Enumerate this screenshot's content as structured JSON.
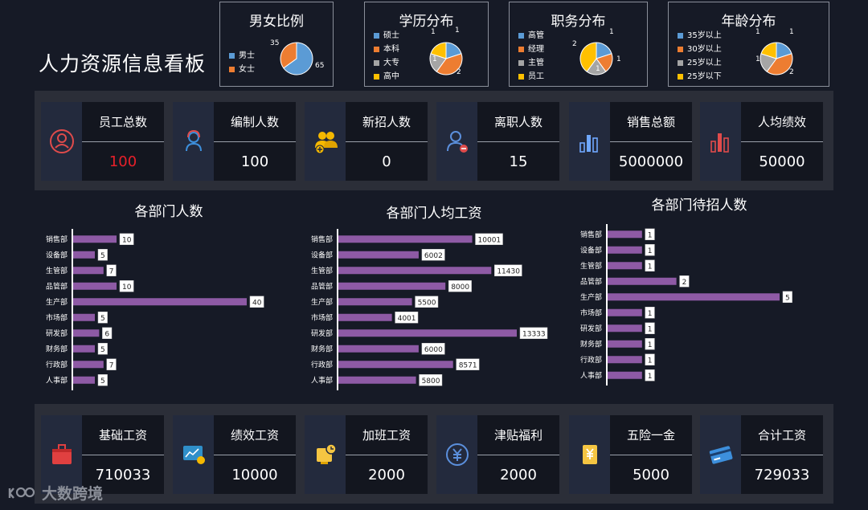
{
  "title": "人力资源信息看板",
  "colors": {
    "blue": "#5b9bd5",
    "orange": "#ed7d31",
    "gray": "#a5a5a5",
    "yellow": "#ffc000",
    "bar": "#8e5aa5",
    "red_value": "#e8202a"
  },
  "pies": [
    {
      "title": "男女比例",
      "legend": [
        {
          "label": "男士",
          "color": "#5b9bd5"
        },
        {
          "label": "女士",
          "color": "#ed7d31"
        }
      ],
      "values": [
        65,
        35
      ],
      "labels": [
        "65",
        "35"
      ]
    },
    {
      "title": "学历分布",
      "legend": [
        {
          "label": "硕士",
          "color": "#5b9bd5"
        },
        {
          "label": "本科",
          "color": "#ed7d31"
        },
        {
          "label": "大专",
          "color": "#a5a5a5"
        },
        {
          "label": "高中",
          "color": "#ffc000"
        }
      ],
      "values": [
        1,
        2,
        1,
        1
      ],
      "labels": [
        "1",
        "2",
        "1",
        "1"
      ]
    },
    {
      "title": "职务分布",
      "legend": [
        {
          "label": "高管",
          "color": "#5b9bd5"
        },
        {
          "label": "经理",
          "color": "#ed7d31"
        },
        {
          "label": "主管",
          "color": "#a5a5a5"
        },
        {
          "label": "员工",
          "color": "#ffc000"
        }
      ],
      "values": [
        1,
        1,
        1,
        2
      ],
      "labels": [
        "1",
        "1",
        "1",
        "2"
      ]
    },
    {
      "title": "年龄分布",
      "legend": [
        {
          "label": "35岁以上",
          "color": "#5b9bd5"
        },
        {
          "label": "30岁以上",
          "color": "#ed7d31"
        },
        {
          "label": "25岁以上",
          "color": "#a5a5a5"
        },
        {
          "label": "25岁以下",
          "color": "#ffc000"
        }
      ],
      "values": [
        1,
        2,
        1,
        1
      ],
      "labels": [
        "1",
        "2",
        "1",
        "1"
      ]
    }
  ],
  "kpis": [
    {
      "label": "员工总数",
      "value": "100",
      "icon": "user-circle-icon",
      "value_color": "#e8202a"
    },
    {
      "label": "编制人数",
      "value": "100",
      "icon": "user-headset-icon"
    },
    {
      "label": "新招人数",
      "value": "0",
      "icon": "user-group-add-icon"
    },
    {
      "label": "离职人数",
      "value": "15",
      "icon": "user-remove-icon"
    },
    {
      "label": "销售总额",
      "value": "5000000",
      "icon": "bar-chart-blue-icon"
    },
    {
      "label": "人均绩效",
      "value": "50000",
      "icon": "bar-chart-red-icon"
    }
  ],
  "salary": [
    {
      "label": "基础工资",
      "value": "710033",
      "icon": "briefcase-icon"
    },
    {
      "label": "绩效工资",
      "value": "10000",
      "icon": "chart-board-icon"
    },
    {
      "label": "加班工资",
      "value": "2000",
      "icon": "overtime-clock-icon"
    },
    {
      "label": "津贴福利",
      "value": "2000",
      "icon": "yuan-coin-icon"
    },
    {
      "label": "五险一金",
      "value": "5000",
      "icon": "yuan-scroll-icon"
    },
    {
      "label": "合计工资",
      "value": "729033",
      "icon": "credit-card-icon"
    }
  ],
  "chart_data": [
    {
      "type": "bar",
      "title": "各部门人数",
      "categories": [
        "销售部",
        "设备部",
        "生管部",
        "品管部",
        "生产部",
        "市场部",
        "研发部",
        "财务部",
        "行政部",
        "人事部"
      ],
      "values": [
        10,
        5,
        7,
        10,
        40,
        5,
        6,
        5,
        7,
        5
      ],
      "orientation": "horizontal"
    },
    {
      "type": "bar",
      "title": "各部门人均工资",
      "categories": [
        "销售部",
        "设备部",
        "生管部",
        "品管部",
        "生产部",
        "市场部",
        "研发部",
        "财务部",
        "行政部",
        "人事部"
      ],
      "values": [
        10001,
        6002,
        11430,
        8000,
        5500,
        4001,
        13333,
        6000,
        8571,
        5800
      ],
      "orientation": "horizontal"
    },
    {
      "type": "bar",
      "title": "各部门待招人数",
      "categories": [
        "销售部",
        "设备部",
        "生管部",
        "品管部",
        "生产部",
        "市场部",
        "研发部",
        "财务部",
        "行政部",
        "人事部"
      ],
      "values": [
        1,
        1,
        1,
        2,
        5,
        1,
        1,
        1,
        1,
        1
      ],
      "orientation": "horizontal"
    }
  ],
  "logo": "大数跨境"
}
